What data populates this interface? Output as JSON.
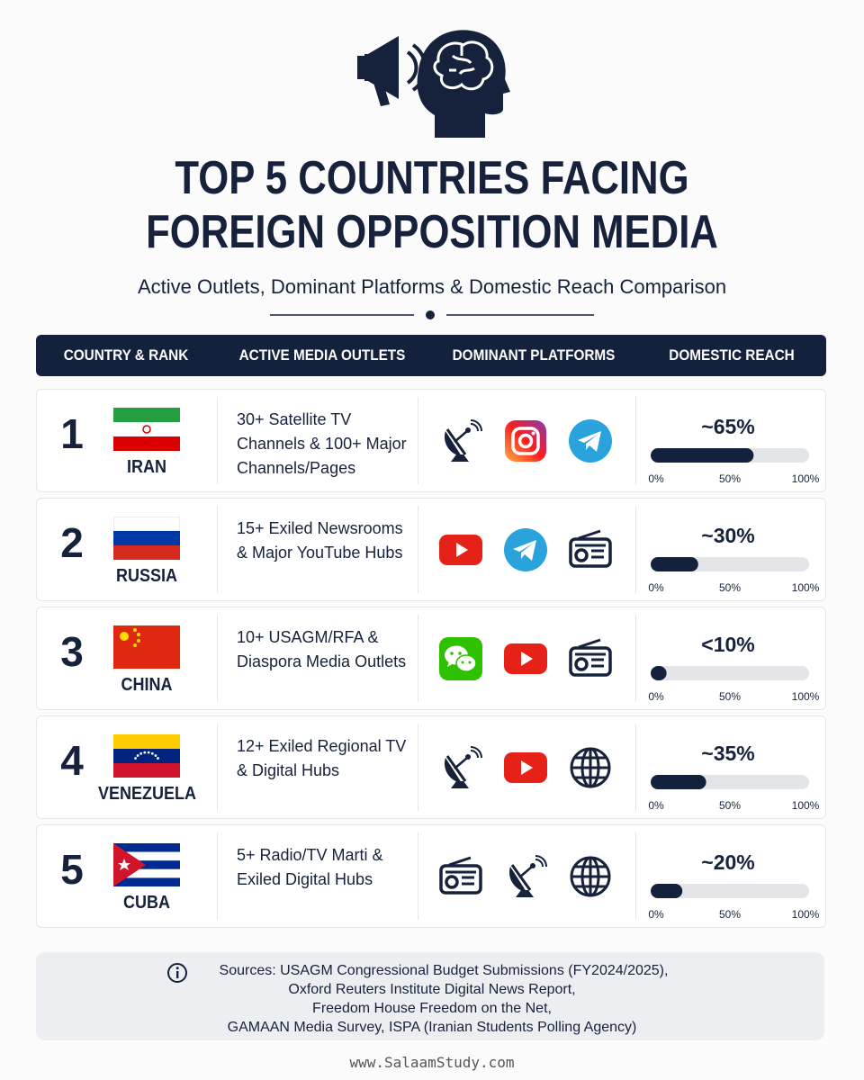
{
  "header": {
    "title_lines": [
      "TOP 5 COUNTRIES FACING",
      "FOREIGN OPPOSITION MEDIA"
    ],
    "subtitle": "Active Outlets, Dominant Platforms & Domestic Reach Comparison"
  },
  "table": {
    "columns": [
      "COUNTRY & RANK",
      "ACTIVE MEDIA OUTLETS",
      "DOMINANT PLATFORMS",
      "DOMESTIC REACH"
    ],
    "reach_ticks": [
      {
        "value": 0,
        "label": "0%"
      },
      {
        "value": 50,
        "label": "50%"
      },
      {
        "value": 100,
        "label": "100%"
      }
    ],
    "rows": [
      {
        "rank": 1,
        "country": "IRAN",
        "outlets": "30+ Satellite TV Channels & 100+ Major Channels/Pages",
        "reach": {
          "value": 65,
          "label": "~65%"
        }
      },
      {
        "rank": 2,
        "country": "RUSSIA",
        "outlets": "15+ Exiled Newsrooms & Major YouTube Hubs",
        "reach": {
          "value": 30,
          "label": "~30%"
        }
      },
      {
        "rank": 3,
        "country": "CHINA",
        "outlets": "10+ USAGM/RFA & Diaspora Media Outlets",
        "reach": {
          "value": 10,
          "label": "<10%"
        }
      },
      {
        "rank": 4,
        "country": "VENEZUELA",
        "outlets": "12+ Exiled Regional TV & Digital Hubs",
        "reach": {
          "value": 35,
          "label": "~35%"
        }
      },
      {
        "rank": 5,
        "country": "CUBA",
        "outlets": "5+ Radio/TV Marti & Exiled Digital Hubs",
        "reach": {
          "value": 20,
          "label": "~20%"
        }
      }
    ]
  },
  "sources": {
    "lines": [
      "Sources: USAGM Congressional Budget Submissions (FY2024/2025),",
      "Oxford Reuters Institute Digital News Report,",
      "Freedom House Freedom on the Net,",
      "GAMAAN Media Survey, ISPA (Iranian Students Polling Agency)"
    ]
  },
  "footer": "www.SalaamStudy.com"
}
